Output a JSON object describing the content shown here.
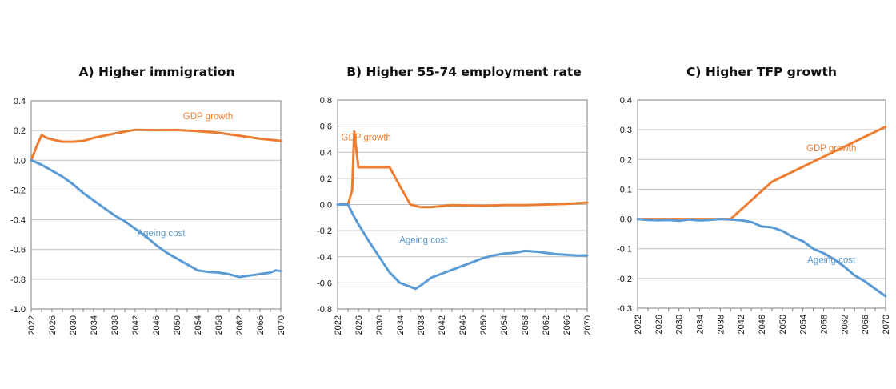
{
  "colors": {
    "gdp": "#ED7D31",
    "ageing": "#5B9BD5",
    "grid": "#bfbfbf",
    "axis": "#808080"
  },
  "chart_data": [
    {
      "type": "line",
      "title": "A) Higher immigration",
      "xlabel": "",
      "ylabel": "",
      "x_ticks": [
        "2022",
        "2026",
        "2030",
        "2034",
        "2038",
        "2042",
        "2046",
        "2050",
        "2054",
        "2058",
        "2062",
        "2066",
        "2070"
      ],
      "ylim": [
        -1.0,
        0.4
      ],
      "y_ticks": [
        0.4,
        0.2,
        0.0,
        -0.2,
        -0.4,
        -0.6,
        -0.8,
        -1.0
      ],
      "y_tick_labels": [
        "0.4",
        "0.2",
        "0.0",
        "-0.2",
        "-0.4",
        "-0.6",
        "-0.8",
        "-1.0"
      ],
      "grid": true,
      "series": [
        {
          "name": "GDP growth",
          "color_key": "gdp",
          "points": [
            [
              2022,
              0
            ],
            [
              2023,
              0.09
            ],
            [
              2024,
              0.17
            ],
            [
              2025,
              0.15
            ],
            [
              2026,
              0.14
            ],
            [
              2028,
              0.125
            ],
            [
              2030,
              0.125
            ],
            [
              2032,
              0.13
            ],
            [
              2034,
              0.15
            ],
            [
              2038,
              0.18
            ],
            [
              2042,
              0.205
            ],
            [
              2046,
              0.203
            ],
            [
              2050,
              0.204
            ],
            [
              2054,
              0.196
            ],
            [
              2058,
              0.185
            ],
            [
              2062,
              0.165
            ],
            [
              2066,
              0.145
            ],
            [
              2070,
              0.13
            ]
          ],
          "label_at": [
            2056,
            0.275
          ]
        },
        {
          "name": "Ageing cost",
          "color_key": "ageing",
          "points": [
            [
              2022,
              0
            ],
            [
              2024,
              -0.03
            ],
            [
              2026,
              -0.07
            ],
            [
              2028,
              -0.11
            ],
            [
              2030,
              -0.16
            ],
            [
              2032,
              -0.22
            ],
            [
              2034,
              -0.27
            ],
            [
              2036,
              -0.32
            ],
            [
              2038,
              -0.37
            ],
            [
              2040,
              -0.41
            ],
            [
              2042,
              -0.46
            ],
            [
              2044,
              -0.51
            ],
            [
              2046,
              -0.57
            ],
            [
              2048,
              -0.62
            ],
            [
              2050,
              -0.66
            ],
            [
              2052,
              -0.7
            ],
            [
              2054,
              -0.74
            ],
            [
              2056,
              -0.75
            ],
            [
              2058,
              -0.755
            ],
            [
              2060,
              -0.765
            ],
            [
              2062,
              -0.785
            ],
            [
              2064,
              -0.775
            ],
            [
              2066,
              -0.765
            ],
            [
              2068,
              -0.755
            ],
            [
              2069,
              -0.74
            ],
            [
              2070,
              -0.745
            ]
          ],
          "label_at": [
            2047,
            -0.51
          ]
        }
      ]
    },
    {
      "type": "line",
      "title": "B) Higher 55-74 employment rate",
      "xlabel": "",
      "ylabel": "",
      "x_ticks": [
        "2022",
        "2026",
        "2030",
        "2034",
        "2038",
        "2042",
        "2046",
        "2050",
        "2054",
        "2058",
        "2062",
        "2066",
        "2070"
      ],
      "ylim": [
        -0.8,
        0.8
      ],
      "y_ticks": [
        0.8,
        0.6,
        0.4,
        0.2,
        0.0,
        -0.2,
        -0.4,
        -0.6,
        -0.8
      ],
      "y_tick_labels": [
        "0.8",
        "0.6",
        "0.4",
        "0.2",
        "0.0",
        "-0.2",
        "-0.4",
        "-0.6",
        "-0.8"
      ],
      "grid": true,
      "series": [
        {
          "name": "GDP growth",
          "color_key": "gdp",
          "points": [
            [
              2022,
              0
            ],
            [
              2024,
              0
            ],
            [
              2024.8,
              0.11
            ],
            [
              2025.2,
              0.56
            ],
            [
              2026,
              0.285
            ],
            [
              2028,
              0.285
            ],
            [
              2030,
              0.285
            ],
            [
              2032,
              0.285
            ],
            [
              2034,
              0.14
            ],
            [
              2036,
              0
            ],
            [
              2038,
              -0.02
            ],
            [
              2040,
              -0.02
            ],
            [
              2044,
              -0.005
            ],
            [
              2050,
              -0.01
            ],
            [
              2054,
              -0.005
            ],
            [
              2058,
              -0.005
            ],
            [
              2062,
              0
            ],
            [
              2066,
              0.005
            ],
            [
              2070,
              0.015
            ]
          ],
          "label_at": [
            2027.5,
            0.49
          ]
        },
        {
          "name": "Ageing cost",
          "color_key": "ageing",
          "points": [
            [
              2022,
              0
            ],
            [
              2024,
              0
            ],
            [
              2025,
              -0.08
            ],
            [
              2026,
              -0.15
            ],
            [
              2028,
              -0.28
            ],
            [
              2030,
              -0.4
            ],
            [
              2032,
              -0.52
            ],
            [
              2034,
              -0.6
            ],
            [
              2036,
              -0.63
            ],
            [
              2037,
              -0.645
            ],
            [
              2038,
              -0.62
            ],
            [
              2040,
              -0.56
            ],
            [
              2042,
              -0.53
            ],
            [
              2044,
              -0.5
            ],
            [
              2046,
              -0.47
            ],
            [
              2048,
              -0.44
            ],
            [
              2050,
              -0.41
            ],
            [
              2052,
              -0.39
            ],
            [
              2054,
              -0.375
            ],
            [
              2056,
              -0.37
            ],
            [
              2058,
              -0.355
            ],
            [
              2060,
              -0.36
            ],
            [
              2062,
              -0.37
            ],
            [
              2064,
              -0.38
            ],
            [
              2066,
              -0.385
            ],
            [
              2068,
              -0.39
            ],
            [
              2070,
              -0.39
            ]
          ],
          "label_at": [
            2038.5,
            -0.295
          ]
        }
      ]
    },
    {
      "type": "line",
      "title": "C) Higher TFP growth",
      "xlabel": "",
      "ylabel": "",
      "x_ticks": [
        "2022",
        "2026",
        "2030",
        "2034",
        "2038",
        "2042",
        "2046",
        "2050",
        "2054",
        "2058",
        "2062",
        "2066",
        "2070"
      ],
      "ylim": [
        -0.3,
        0.4
      ],
      "y_ticks": [
        0.4,
        0.3,
        0.2,
        0.1,
        0.0,
        -0.1,
        -0.2,
        -0.3
      ],
      "y_tick_labels": [
        "0.4",
        "0.3",
        "0.2",
        "0.1",
        "0.0",
        "-0.1",
        "-0.2",
        "-0.3"
      ],
      "grid": true,
      "series": [
        {
          "name": "GDP growth",
          "color_key": "gdp",
          "points": [
            [
              2022,
              0
            ],
            [
              2030,
              0
            ],
            [
              2040,
              0
            ],
            [
              2048,
              0.125
            ],
            [
              2070,
              0.31
            ]
          ],
          "label_at": [
            2059.5,
            0.228
          ]
        },
        {
          "name": "Ageing cost",
          "color_key": "ageing",
          "points": [
            [
              2022,
              0
            ],
            [
              2024,
              -0.003
            ],
            [
              2026,
              -0.004
            ],
            [
              2028,
              -0.003
            ],
            [
              2030,
              -0.006
            ],
            [
              2032,
              -0.002
            ],
            [
              2034,
              -0.005
            ],
            [
              2036,
              -0.003
            ],
            [
              2038,
              0
            ],
            [
              2040,
              -0.002
            ],
            [
              2042,
              -0.004
            ],
            [
              2044,
              -0.01
            ],
            [
              2046,
              -0.025
            ],
            [
              2048,
              -0.028
            ],
            [
              2050,
              -0.04
            ],
            [
              2052,
              -0.06
            ],
            [
              2054,
              -0.075
            ],
            [
              2056,
              -0.1
            ],
            [
              2058,
              -0.115
            ],
            [
              2060,
              -0.135
            ],
            [
              2062,
              -0.16
            ],
            [
              2064,
              -0.19
            ],
            [
              2066,
              -0.21
            ],
            [
              2068,
              -0.235
            ],
            [
              2070,
              -0.26
            ]
          ],
          "label_at": [
            2059.5,
            -0.148
          ]
        }
      ]
    }
  ]
}
